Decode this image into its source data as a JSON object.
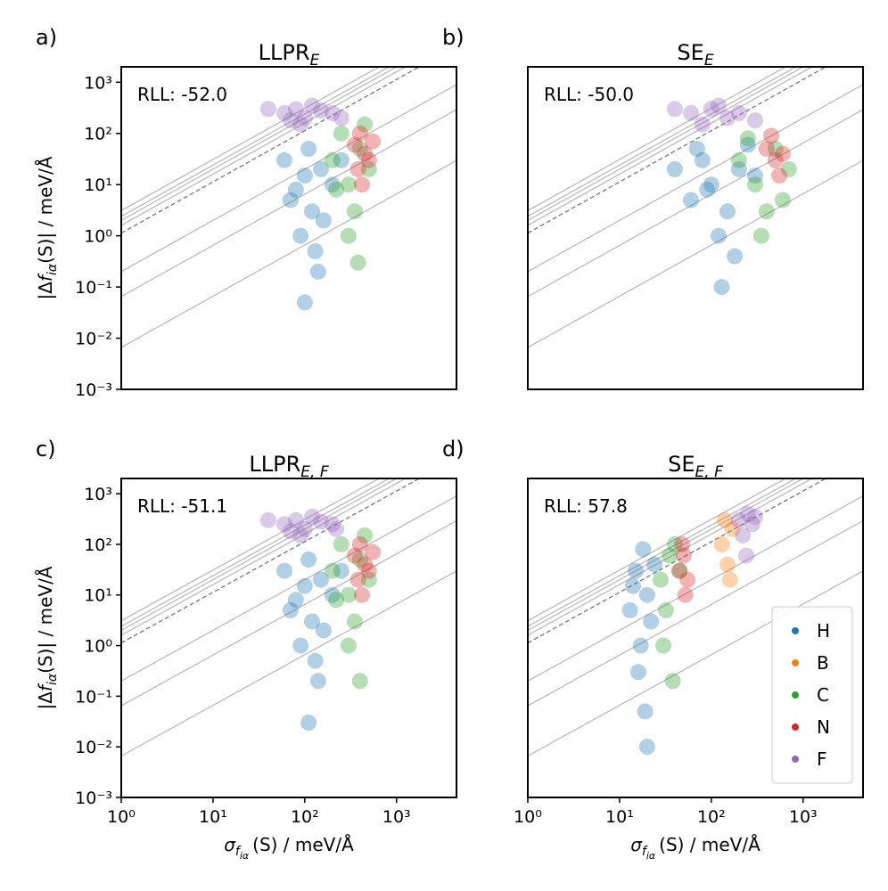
{
  "chart_data": [
    {
      "type": "scatter",
      "panel_label": "a)",
      "title": "LLPR",
      "title_sub": "E",
      "annotation": "RLL: -52.0",
      "xlim": [
        1,
        4500
      ],
      "ylim": [
        0.001,
        2000
      ],
      "log_x": true,
      "log_y": true,
      "yticks": [
        {
          "value": 0.001,
          "label": "10⁻³"
        },
        {
          "value": 0.01,
          "label": "10⁻²"
        },
        {
          "value": 0.1,
          "label": "10⁻¹"
        },
        {
          "value": 1,
          "label": "10⁰"
        },
        {
          "value": 10,
          "label": "10¹"
        },
        {
          "value": 100,
          "label": "10²"
        },
        {
          "value": 1000,
          "label": "10³"
        }
      ],
      "ylabel": {
        "before": "|Δ",
        "symbol": "f",
        "sub": "iα",
        "after": "(S)| / meV/Å"
      },
      "guide_lines": [
        3.1,
        2.4,
        2.0,
        1.6,
        0.2,
        0.065,
        0.0066
      ],
      "dashed_guide": 1.13,
      "guide_color": "#bbbbbb",
      "series": [
        {
          "color": "#1f77b4",
          "x": [
            60,
            80,
            100,
            120,
            150,
            90,
            130,
            110,
            200,
            70,
            160,
            140,
            250,
            100
          ],
          "y": [
            30,
            8,
            15,
            3,
            20,
            1,
            0.5,
            50,
            10,
            5,
            2,
            0.2,
            30,
            0.05
          ]
        },
        {
          "color": "#2ca02c",
          "x": [
            200,
            300,
            400,
            250,
            350,
            500,
            300,
            450,
            220,
            380
          ],
          "y": [
            30,
            10,
            50,
            100,
            3,
            20,
            1,
            150,
            8,
            0.3
          ]
        },
        {
          "color": "#d62728",
          "x": [
            350,
            450,
            400,
            500,
            380,
            550,
            420
          ],
          "y": [
            60,
            40,
            100,
            30,
            20,
            70,
            10
          ]
        },
        {
          "color": "#9467bd",
          "x": [
            40,
            60,
            80,
            100,
            150,
            200,
            120,
            70,
            250,
            90
          ],
          "y": [
            300,
            250,
            300,
            200,
            280,
            250,
            350,
            180,
            200,
            150
          ]
        }
      ]
    },
    {
      "type": "scatter",
      "panel_label": "b)",
      "title": "SE",
      "title_sub": "E",
      "annotation": "RLL: -50.0",
      "xlim": [
        1,
        4500
      ],
      "ylim": [
        0.001,
        2000
      ],
      "log_x": true,
      "log_y": true,
      "guide_lines": [
        3.1,
        2.4,
        2.0,
        1.6,
        0.2,
        0.065,
        0.0066
      ],
      "dashed_guide": 1.13,
      "guide_color": "#bbbbbb",
      "series": [
        {
          "color": "#1f77b4",
          "x": [
            40,
            60,
            80,
            100,
            150,
            200,
            120,
            300,
            70,
            180,
            250,
            90,
            130
          ],
          "y": [
            20,
            5,
            30,
            10,
            3,
            20,
            1,
            15,
            50,
            0.4,
            60,
            8,
            0.1
          ]
        },
        {
          "color": "#2ca02c",
          "x": [
            200,
            300,
            500,
            700,
            400,
            250,
            600,
            350
          ],
          "y": [
            30,
            10,
            50,
            20,
            3,
            80,
            5,
            1
          ]
        },
        {
          "color": "#d62728",
          "x": [
            400,
            500,
            450,
            600,
            550
          ],
          "y": [
            50,
            30,
            90,
            40,
            15
          ]
        },
        {
          "color": "#9467bd",
          "x": [
            40,
            60,
            100,
            150,
            200,
            300,
            80,
            120
          ],
          "y": [
            300,
            250,
            300,
            200,
            250,
            180,
            150,
            350
          ]
        }
      ]
    },
    {
      "type": "scatter",
      "panel_label": "c)",
      "title": "LLPR",
      "title_sub": "E, F",
      "annotation": "RLL: -51.1",
      "xlim": [
        1,
        4500
      ],
      "ylim": [
        0.001,
        2000
      ],
      "log_x": true,
      "log_y": true,
      "xticks": [
        {
          "value": 1,
          "label": "10⁰"
        },
        {
          "value": 10,
          "label": "10¹"
        },
        {
          "value": 100,
          "label": "10²"
        },
        {
          "value": 1000,
          "label": "10³"
        }
      ],
      "yticks": [
        {
          "value": 0.001,
          "label": "10⁻³"
        },
        {
          "value": 0.01,
          "label": "10⁻²"
        },
        {
          "value": 0.1,
          "label": "10⁻¹"
        },
        {
          "value": 1,
          "label": "10⁰"
        },
        {
          "value": 10,
          "label": "10¹"
        },
        {
          "value": 100,
          "label": "10²"
        },
        {
          "value": 1000,
          "label": "10³"
        }
      ],
      "xlabel": {
        "symbol": "σ",
        "sub": "f",
        "subsub": "iα",
        "after": "(S) / meV/Å"
      },
      "ylabel": {
        "before": "|Δ",
        "symbol": "f",
        "sub": "iα",
        "after": "(S)| / meV/Å"
      },
      "guide_lines": [
        3.1,
        2.4,
        2.0,
        1.6,
        0.2,
        0.065,
        0.0066
      ],
      "dashed_guide": 1.13,
      "guide_color": "#bbbbbb",
      "series": [
        {
          "color": "#1f77b4",
          "x": [
            60,
            80,
            100,
            120,
            150,
            90,
            130,
            110,
            200,
            70,
            160,
            140,
            250,
            110
          ],
          "y": [
            30,
            8,
            15,
            3,
            20,
            1,
            0.5,
            50,
            10,
            5,
            2,
            0.2,
            30,
            0.03
          ]
        },
        {
          "color": "#2ca02c",
          "x": [
            200,
            300,
            400,
            250,
            350,
            500,
            300,
            450,
            220,
            400
          ],
          "y": [
            30,
            10,
            50,
            100,
            3,
            20,
            1,
            150,
            8,
            0.2
          ]
        },
        {
          "color": "#d62728",
          "x": [
            350,
            450,
            400,
            500,
            380,
            550,
            420
          ],
          "y": [
            60,
            40,
            100,
            30,
            20,
            70,
            10
          ]
        },
        {
          "color": "#9467bd",
          "x": [
            40,
            60,
            80,
            100,
            150,
            200,
            120,
            70,
            220,
            90
          ],
          "y": [
            300,
            250,
            300,
            200,
            280,
            250,
            350,
            180,
            200,
            150
          ]
        }
      ]
    },
    {
      "type": "scatter",
      "panel_label": "d)",
      "title": "SE",
      "title_sub": "E, F",
      "annotation": "RLL: 57.8",
      "xlim": [
        1,
        4500
      ],
      "ylim": [
        0.001,
        2000
      ],
      "log_x": true,
      "log_y": true,
      "xticks": [
        {
          "value": 1,
          "label": "10⁰"
        },
        {
          "value": 10,
          "label": "10¹"
        },
        {
          "value": 100,
          "label": "10²"
        },
        {
          "value": 1000,
          "label": "10³"
        }
      ],
      "xlabel": {
        "symbol": "σ",
        "sub": "f",
        "subsub": "iα",
        "after": "(S) / meV/Å"
      },
      "guide_lines": [
        3.1,
        2.4,
        2.0,
        1.6,
        0.2,
        0.065,
        0.0066
      ],
      "dashed_guide": 1.13,
      "guide_color": "#bbbbbb",
      "legend": "lower right",
      "series": [
        {
          "name": "H",
          "color": "#1f77b4",
          "x": [
            13,
            15,
            17,
            18,
            20,
            16,
            19,
            22,
            14,
            24,
            20
          ],
          "y": [
            5,
            30,
            1,
            80,
            10,
            0.3,
            0.05,
            3,
            15,
            40,
            0.01
          ]
        },
        {
          "name": "B",
          "color": "#ff7f0e",
          "x": [
            130,
            150,
            170,
            160,
            140
          ],
          "y": [
            100,
            40,
            200,
            20,
            300
          ]
        },
        {
          "name": "C",
          "color": "#2ca02c",
          "x": [
            28,
            32,
            35,
            40,
            30,
            45,
            38
          ],
          "y": [
            20,
            5,
            60,
            100,
            1,
            30,
            0.2
          ]
        },
        {
          "name": "N",
          "color": "#d62728",
          "x": [
            45,
            50,
            55,
            48,
            52
          ],
          "y": [
            30,
            60,
            20,
            100,
            10
          ]
        },
        {
          "name": "F",
          "color": "#9467bd",
          "x": [
            200,
            250,
            220,
            280,
            240,
            300
          ],
          "y": [
            300,
            400,
            150,
            250,
            60,
            350
          ]
        }
      ]
    }
  ]
}
